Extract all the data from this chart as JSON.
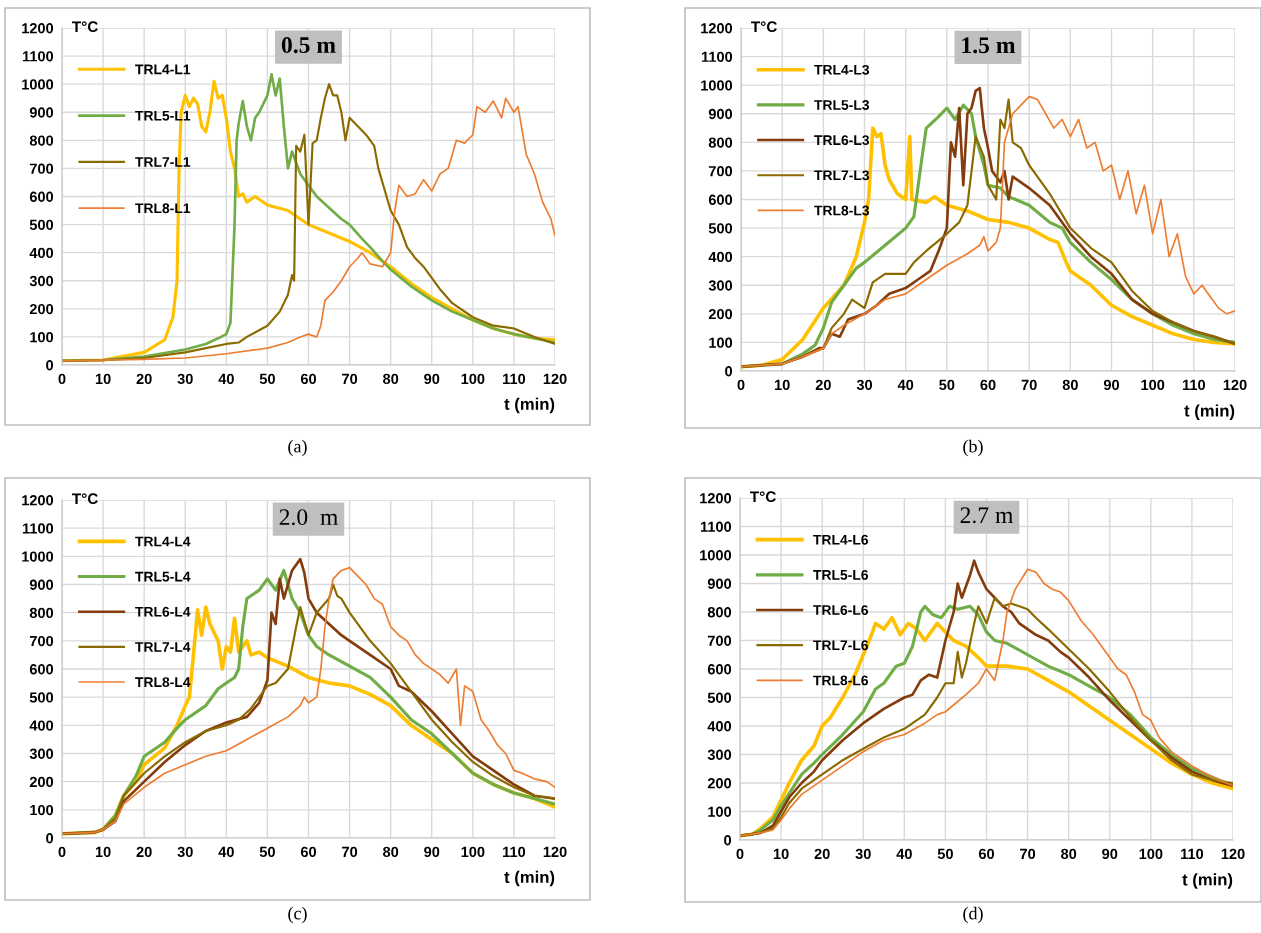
{
  "chart_data": [
    {
      "type": "line",
      "title": "0.5 m",
      "xlabel": "t (min)",
      "ylabel": "T°C",
      "xlim": [
        0,
        120
      ],
      "ylim": [
        0,
        1200
      ],
      "xticks": [
        0,
        10,
        20,
        30,
        40,
        50,
        60,
        70,
        80,
        90,
        100,
        110,
        120
      ],
      "yticks": [
        0,
        100,
        200,
        300,
        400,
        500,
        600,
        700,
        800,
        900,
        1000,
        1100,
        1200
      ],
      "grid": true,
      "legend": "top left",
      "annotations": [
        "(a)"
      ],
      "series": [
        {
          "name": "TRL4-L1",
          "color": "#ffc000",
          "x": [
            0,
            10,
            20,
            25,
            27,
            28,
            28.5,
            29,
            30,
            31,
            32,
            33,
            34,
            35,
            36,
            37,
            38,
            39,
            40,
            41,
            42,
            43,
            44,
            45,
            47,
            50,
            55,
            58,
            60,
            65,
            70,
            75,
            80,
            85,
            90,
            95,
            100,
            105,
            110,
            115,
            120
          ],
          "values": [
            15,
            18,
            45,
            90,
            170,
            300,
            700,
            900,
            960,
            920,
            950,
            930,
            850,
            830,
            900,
            1010,
            950,
            960,
            880,
            760,
            700,
            600,
            610,
            580,
            600,
            570,
            550,
            520,
            500,
            470,
            440,
            400,
            350,
            290,
            240,
            200,
            160,
            130,
            110,
            95,
            90
          ]
        },
        {
          "name": "TRL5-L1",
          "color": "#70ad47",
          "x": [
            0,
            10,
            20,
            30,
            35,
            38,
            40,
            41,
            42,
            42.5,
            43,
            44,
            45,
            46,
            47,
            48,
            50,
            51,
            52,
            53,
            54,
            55,
            56,
            57,
            58,
            60,
            62,
            65,
            68,
            70,
            73,
            75,
            78,
            80,
            85,
            90,
            95,
            100,
            105,
            110,
            115,
            120
          ],
          "values": [
            15,
            18,
            30,
            55,
            75,
            95,
            110,
            150,
            500,
            800,
            860,
            940,
            850,
            800,
            880,
            900,
            960,
            1035,
            960,
            1020,
            850,
            700,
            760,
            720,
            680,
            640,
            600,
            560,
            520,
            500,
            450,
            420,
            370,
            340,
            280,
            230,
            190,
            160,
            130,
            110,
            95,
            80
          ]
        },
        {
          "name": "TRL7-L1",
          "color": "#8b6a00",
          "x": [
            0,
            10,
            20,
            30,
            35,
            40,
            43,
            45,
            50,
            53,
            55,
            56,
            56.5,
            57,
            58,
            59,
            60,
            61,
            62,
            63,
            64,
            65,
            66,
            67,
            68,
            69,
            70,
            72,
            74,
            76,
            77,
            78,
            80,
            82,
            84,
            86,
            88,
            90,
            92,
            95,
            100,
            105,
            110,
            115,
            120
          ],
          "values": [
            15,
            17,
            25,
            45,
            60,
            75,
            80,
            100,
            140,
            190,
            250,
            320,
            300,
            780,
            760,
            820,
            500,
            790,
            800,
            880,
            950,
            1000,
            960,
            960,
            900,
            800,
            880,
            850,
            820,
            780,
            700,
            650,
            550,
            500,
            420,
            380,
            350,
            310,
            270,
            220,
            170,
            140,
            130,
            100,
            75
          ]
        },
        {
          "name": "TRL8-L1",
          "color": "#ed7d31",
          "x": [
            0,
            20,
            30,
            40,
            50,
            55,
            58,
            60,
            62,
            63,
            64,
            66,
            68,
            70,
            72,
            73,
            75,
            78,
            80,
            81,
            82,
            84,
            86,
            88,
            90,
            92,
            94,
            96,
            98,
            100,
            101,
            103,
            105,
            107,
            108,
            110,
            111,
            113,
            115,
            117,
            119,
            120
          ],
          "values": [
            15,
            20,
            25,
            40,
            60,
            80,
            100,
            110,
            100,
            140,
            230,
            260,
            300,
            350,
            380,
            400,
            360,
            350,
            400,
            550,
            640,
            600,
            610,
            660,
            620,
            680,
            700,
            800,
            790,
            820,
            920,
            900,
            940,
            880,
            950,
            900,
            920,
            750,
            680,
            580,
            520,
            460
          ]
        }
      ]
    },
    {
      "type": "line",
      "title": "1.5 m",
      "xlabel": "t (min)",
      "ylabel": "T°C",
      "xlim": [
        0,
        120
      ],
      "ylim": [
        0,
        1200
      ],
      "xticks": [
        0,
        10,
        20,
        30,
        40,
        50,
        60,
        70,
        80,
        90,
        100,
        110,
        120
      ],
      "yticks": [
        0,
        100,
        200,
        300,
        400,
        500,
        600,
        700,
        800,
        900,
        1000,
        1100,
        1200
      ],
      "grid": true,
      "legend": "top left",
      "annotations": [
        "(b)"
      ],
      "series": [
        {
          "name": "TRL4-L3",
          "color": "#ffc000",
          "x": [
            0,
            5,
            10,
            15,
            20,
            25,
            28,
            30,
            31,
            32,
            33,
            34,
            35,
            36,
            38,
            40,
            41,
            41.5,
            45,
            47,
            50,
            55,
            60,
            65,
            70,
            75,
            77,
            79,
            80,
            85,
            90,
            95,
            100,
            105,
            110,
            115,
            120
          ],
          "values": [
            15,
            20,
            40,
            110,
            220,
            300,
            400,
            520,
            600,
            850,
            820,
            830,
            720,
            670,
            620,
            600,
            820,
            600,
            590,
            610,
            580,
            560,
            530,
            520,
            500,
            460,
            450,
            380,
            350,
            300,
            230,
            190,
            160,
            130,
            110,
            100,
            95
          ]
        },
        {
          "name": "TRL5-L3",
          "color": "#70ad47",
          "x": [
            0,
            10,
            15,
            18,
            20,
            22,
            25,
            28,
            30,
            35,
            40,
            42,
            44,
            45,
            48,
            50,
            52,
            54,
            56,
            57,
            59,
            60,
            63,
            65,
            70,
            75,
            78,
            80,
            85,
            90,
            95,
            100,
            105,
            110,
            115,
            120
          ],
          "values": [
            15,
            25,
            60,
            90,
            150,
            240,
            300,
            360,
            380,
            440,
            500,
            540,
            750,
            850,
            890,
            920,
            880,
            930,
            900,
            820,
            720,
            650,
            640,
            610,
            580,
            520,
            500,
            450,
            380,
            320,
            250,
            200,
            160,
            130,
            110,
            100
          ]
        },
        {
          "name": "TRL6-L3",
          "color": "#843c0c",
          "x": [
            0,
            10,
            15,
            19,
            20,
            22,
            24,
            26,
            30,
            33,
            36,
            40,
            43,
            46,
            48,
            50,
            51,
            52,
            53,
            54,
            55,
            56,
            57,
            58,
            59,
            60,
            61,
            63,
            64,
            65,
            66,
            70,
            75,
            80,
            85,
            90,
            95,
            100,
            105,
            110,
            115,
            120
          ],
          "values": [
            15,
            25,
            50,
            80,
            80,
            130,
            120,
            180,
            200,
            230,
            270,
            290,
            320,
            350,
            420,
            500,
            800,
            750,
            920,
            650,
            900,
            920,
            980,
            990,
            850,
            780,
            700,
            660,
            700,
            600,
            680,
            640,
            580,
            480,
            400,
            340,
            250,
            200,
            170,
            140,
            120,
            95
          ]
        },
        {
          "name": "TRL7-L3",
          "color": "#8b6a00",
          "x": [
            0,
            10,
            15,
            20,
            22,
            25,
            27,
            30,
            32,
            35,
            40,
            42,
            45,
            50,
            53,
            55,
            56,
            57,
            59,
            60,
            62,
            63,
            64,
            65,
            66,
            68,
            70,
            75,
            80,
            85,
            90,
            95,
            100,
            105,
            110,
            115,
            120
          ],
          "values": [
            15,
            25,
            50,
            80,
            150,
            200,
            250,
            220,
            310,
            340,
            340,
            380,
            420,
            480,
            520,
            580,
            700,
            820,
            750,
            650,
            600,
            880,
            850,
            950,
            800,
            780,
            720,
            620,
            500,
            430,
            380,
            280,
            210,
            170,
            140,
            120,
            95
          ]
        },
        {
          "name": "TRL8-L3",
          "color": "#ed7d31",
          "x": [
            0,
            10,
            15,
            20,
            22,
            25,
            30,
            35,
            40,
            45,
            50,
            55,
            58,
            59,
            60,
            62,
            63,
            64,
            66,
            68,
            70,
            72,
            74,
            76,
            78,
            80,
            82,
            84,
            86,
            88,
            90,
            92,
            94,
            96,
            98,
            100,
            102,
            104,
            106,
            108,
            110,
            112,
            114,
            116,
            118,
            120
          ],
          "values": [
            15,
            25,
            50,
            80,
            130,
            160,
            200,
            250,
            270,
            320,
            370,
            410,
            440,
            470,
            420,
            450,
            500,
            800,
            900,
            930,
            960,
            950,
            900,
            850,
            880,
            820,
            880,
            780,
            800,
            700,
            720,
            600,
            700,
            550,
            650,
            480,
            600,
            400,
            480,
            330,
            270,
            300,
            260,
            220,
            200,
            210
          ]
        }
      ]
    },
    {
      "type": "line",
      "title": "2.0  m",
      "xlabel": "t (min)",
      "ylabel": "T°C",
      "xlim": [
        0,
        120
      ],
      "ylim": [
        0,
        1200
      ],
      "xticks": [
        0,
        10,
        20,
        30,
        40,
        50,
        60,
        70,
        80,
        90,
        100,
        110,
        120
      ],
      "yticks": [
        0,
        100,
        200,
        300,
        400,
        500,
        600,
        700,
        800,
        900,
        1000,
        1100,
        1200
      ],
      "grid": true,
      "legend": "top left",
      "annotations": [
        "(c)"
      ],
      "series": [
        {
          "name": "TRL4-L4",
          "color": "#ffc000",
          "x": [
            0,
            8,
            10,
            13,
            15,
            18,
            20,
            25,
            28,
            30,
            31,
            32,
            33,
            34,
            35,
            36,
            38,
            39,
            40,
            41,
            42,
            43,
            45,
            46,
            48,
            50,
            55,
            60,
            65,
            70,
            75,
            80,
            85,
            90,
            95,
            100,
            105,
            110,
            115,
            120
          ],
          "values": [
            15,
            20,
            30,
            80,
            150,
            200,
            260,
            320,
            400,
            470,
            500,
            650,
            810,
            720,
            820,
            760,
            700,
            600,
            680,
            660,
            780,
            660,
            700,
            650,
            660,
            640,
            610,
            570,
            550,
            540,
            510,
            470,
            400,
            350,
            300,
            230,
            190,
            160,
            140,
            110
          ]
        },
        {
          "name": "TRL5-L4",
          "color": "#70ad47",
          "x": [
            0,
            8,
            10,
            13,
            15,
            18,
            20,
            25,
            28,
            30,
            35,
            38,
            40,
            42,
            43,
            44,
            45,
            48,
            50,
            52,
            54,
            56,
            58,
            60,
            62,
            65,
            70,
            75,
            80,
            85,
            90,
            95,
            100,
            105,
            110,
            115,
            120
          ],
          "values": [
            15,
            20,
            30,
            80,
            150,
            220,
            290,
            340,
            390,
            420,
            470,
            530,
            550,
            570,
            600,
            750,
            850,
            880,
            920,
            880,
            950,
            850,
            800,
            720,
            680,
            650,
            610,
            570,
            500,
            420,
            370,
            300,
            230,
            190,
            160,
            140,
            120
          ]
        },
        {
          "name": "TRL6-L4",
          "color": "#843c0c",
          "x": [
            0,
            8,
            10,
            13,
            15,
            20,
            25,
            30,
            35,
            40,
            45,
            48,
            50,
            51,
            52,
            53,
            54,
            55,
            56,
            58,
            59,
            60,
            62,
            65,
            68,
            70,
            75,
            80,
            82,
            85,
            90,
            95,
            100,
            105,
            110,
            115,
            120
          ],
          "values": [
            15,
            20,
            30,
            60,
            130,
            200,
            270,
            330,
            380,
            410,
            430,
            480,
            560,
            800,
            760,
            920,
            850,
            900,
            950,
            990,
            940,
            850,
            800,
            760,
            720,
            700,
            650,
            600,
            540,
            520,
            450,
            370,
            290,
            240,
            190,
            150,
            140
          ]
        },
        {
          "name": "TRL7-L4",
          "color": "#8b6a00",
          "x": [
            0,
            8,
            10,
            13,
            15,
            20,
            25,
            30,
            35,
            40,
            43,
            46,
            50,
            52,
            55,
            57,
            58,
            60,
            62,
            65,
            66,
            67,
            68,
            70,
            75,
            80,
            85,
            90,
            95,
            100,
            105,
            110,
            115,
            120
          ],
          "values": [
            15,
            20,
            30,
            70,
            150,
            230,
            290,
            340,
            380,
            400,
            420,
            460,
            540,
            550,
            600,
            750,
            820,
            720,
            800,
            850,
            900,
            860,
            850,
            800,
            700,
            620,
            520,
            420,
            340,
            270,
            220,
            180,
            150,
            140
          ]
        },
        {
          "name": "TRL8-L4",
          "color": "#ed7d31",
          "x": [
            0,
            8,
            10,
            13,
            15,
            20,
            25,
            30,
            35,
            40,
            45,
            50,
            55,
            58,
            59,
            60,
            62,
            63,
            64,
            65,
            66,
            68,
            70,
            72,
            74,
            76,
            78,
            80,
            82,
            84,
            86,
            88,
            90,
            92,
            94,
            96,
            97,
            98,
            100,
            102,
            104,
            106,
            108,
            110,
            112,
            115,
            118,
            120
          ],
          "values": [
            15,
            20,
            30,
            60,
            120,
            180,
            230,
            260,
            290,
            310,
            350,
            390,
            430,
            470,
            500,
            480,
            500,
            600,
            750,
            850,
            920,
            950,
            960,
            930,
            900,
            850,
            830,
            750,
            720,
            700,
            650,
            620,
            600,
            580,
            550,
            600,
            400,
            540,
            520,
            420,
            380,
            330,
            300,
            240,
            230,
            210,
            200,
            180
          ]
        }
      ]
    },
    {
      "type": "line",
      "title": "2.7 m",
      "xlabel": "t (min)",
      "ylabel": "T°C",
      "xlim": [
        0,
        120
      ],
      "ylim": [
        0,
        1200
      ],
      "xticks": [
        0,
        10,
        20,
        30,
        40,
        50,
        60,
        70,
        80,
        90,
        100,
        110,
        120
      ],
      "yticks": [
        0,
        100,
        200,
        300,
        400,
        500,
        600,
        700,
        800,
        900,
        1000,
        1100,
        1200
      ],
      "grid": true,
      "legend": "top left",
      "annotations": [
        "(d)"
      ],
      "series": [
        {
          "name": "TRL4-L6",
          "color": "#ffc000",
          "x": [
            0,
            3,
            5,
            8,
            10,
            12,
            15,
            18,
            20,
            22,
            25,
            28,
            30,
            32,
            33,
            35,
            37,
            39,
            41,
            43,
            45,
            48,
            50,
            52,
            55,
            58,
            60,
            65,
            70,
            75,
            80,
            85,
            90,
            95,
            100,
            105,
            110,
            115,
            120
          ],
          "values": [
            15,
            20,
            40,
            80,
            140,
            200,
            280,
            330,
            400,
            430,
            500,
            580,
            650,
            720,
            760,
            740,
            780,
            720,
            760,
            740,
            700,
            760,
            730,
            700,
            680,
            640,
            610,
            610,
            600,
            560,
            520,
            470,
            420,
            370,
            320,
            270,
            230,
            200,
            180
          ]
        },
        {
          "name": "TRL5-L6",
          "color": "#70ad47",
          "x": [
            0,
            3,
            5,
            8,
            10,
            15,
            18,
            20,
            25,
            30,
            33,
            35,
            38,
            40,
            42,
            44,
            45,
            47,
            49,
            51,
            53,
            56,
            58,
            60,
            62,
            65,
            70,
            75,
            80,
            85,
            90,
            95,
            100,
            105,
            110,
            115,
            120
          ],
          "values": [
            15,
            20,
            35,
            70,
            120,
            230,
            270,
            300,
            370,
            450,
            530,
            550,
            610,
            620,
            680,
            800,
            820,
            790,
            780,
            820,
            810,
            820,
            790,
            730,
            700,
            690,
            650,
            610,
            580,
            540,
            500,
            440,
            360,
            300,
            250,
            220,
            190
          ]
        },
        {
          "name": "TRL6-L6",
          "color": "#843c0c",
          "x": [
            0,
            5,
            8,
            10,
            12,
            15,
            18,
            20,
            25,
            30,
            35,
            40,
            42,
            44,
            46,
            48,
            50,
            52,
            53,
            54,
            56,
            57,
            58,
            60,
            62,
            64,
            66,
            68,
            70,
            72,
            75,
            78,
            80,
            85,
            90,
            95,
            100,
            105,
            110,
            115,
            120
          ],
          "values": [
            15,
            25,
            50,
            100,
            150,
            200,
            240,
            280,
            350,
            410,
            460,
            500,
            510,
            560,
            580,
            570,
            700,
            800,
            900,
            850,
            930,
            980,
            940,
            880,
            850,
            820,
            800,
            760,
            740,
            720,
            700,
            660,
            640,
            570,
            490,
            420,
            350,
            290,
            240,
            210,
            190
          ]
        },
        {
          "name": "TRL7-L6",
          "color": "#8b6a00",
          "x": [
            0,
            5,
            8,
            10,
            12,
            15,
            18,
            20,
            25,
            30,
            35,
            40,
            45,
            48,
            50,
            52,
            53,
            54,
            55,
            57,
            58,
            60,
            62,
            64,
            66,
            68,
            70,
            72,
            75,
            80,
            85,
            90,
            95,
            100,
            105,
            110,
            115,
            120
          ],
          "values": [
            15,
            25,
            40,
            80,
            130,
            180,
            210,
            230,
            280,
            320,
            360,
            390,
            440,
            500,
            550,
            550,
            660,
            570,
            620,
            760,
            820,
            760,
            850,
            820,
            830,
            820,
            810,
            780,
            740,
            670,
            600,
            520,
            430,
            350,
            280,
            230,
            210,
            200
          ]
        },
        {
          "name": "TRL8-L6",
          "color": "#ed7d31",
          "x": [
            0,
            5,
            8,
            10,
            12,
            15,
            18,
            20,
            25,
            30,
            35,
            40,
            45,
            48,
            50,
            55,
            58,
            60,
            62,
            64,
            65,
            67,
            70,
            72,
            74,
            76,
            78,
            80,
            83,
            86,
            88,
            90,
            92,
            94,
            96,
            98,
            100,
            102,
            105,
            110,
            115,
            120
          ],
          "values": [
            15,
            25,
            35,
            70,
            110,
            160,
            190,
            210,
            260,
            310,
            350,
            370,
            410,
            440,
            450,
            510,
            550,
            600,
            560,
            700,
            800,
            880,
            950,
            940,
            900,
            880,
            870,
            840,
            770,
            720,
            680,
            640,
            600,
            580,
            520,
            440,
            420,
            360,
            310,
            260,
            220,
            190
          ]
        }
      ]
    }
  ]
}
